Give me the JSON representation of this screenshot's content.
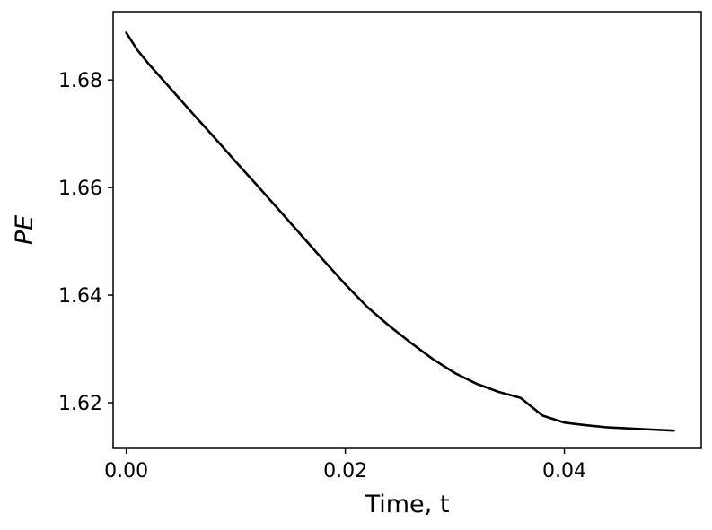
{
  "chart_data": {
    "type": "line",
    "title": "",
    "xlabel": "Time, t",
    "ylabel": "PE",
    "xlim": [
      -0.0012,
      0.0525
    ],
    "ylim": [
      1.6115,
      1.6927
    ],
    "xticks": [
      0.0,
      0.02,
      0.04
    ],
    "xtick_labels": [
      "0.00",
      "0.02",
      "0.04"
    ],
    "yticks": [
      1.62,
      1.64,
      1.66,
      1.68
    ],
    "ytick_labels": [
      "1.62",
      "1.64",
      "1.66",
      "1.68"
    ],
    "grid": false,
    "legend": "none",
    "series": [
      {
        "color": "#000000",
        "x": [
          0.0,
          0.001,
          0.002,
          0.004,
          0.006,
          0.008,
          0.01,
          0.012,
          0.014,
          0.016,
          0.018,
          0.02,
          0.022,
          0.024,
          0.026,
          0.028,
          0.03,
          0.032,
          0.034,
          0.036,
          0.038,
          0.04,
          0.042,
          0.044,
          0.046,
          0.048,
          0.05
        ],
        "y": [
          1.6888,
          1.6856,
          1.6831,
          1.6785,
          1.6739,
          1.6694,
          1.6648,
          1.6603,
          1.6557,
          1.6511,
          1.6465,
          1.642,
          1.6378,
          1.6343,
          1.6311,
          1.6281,
          1.6255,
          1.6235,
          1.622,
          1.6209,
          1.6176,
          1.6163,
          1.6158,
          1.6154,
          1.6152,
          1.615,
          1.6148
        ]
      }
    ]
  }
}
